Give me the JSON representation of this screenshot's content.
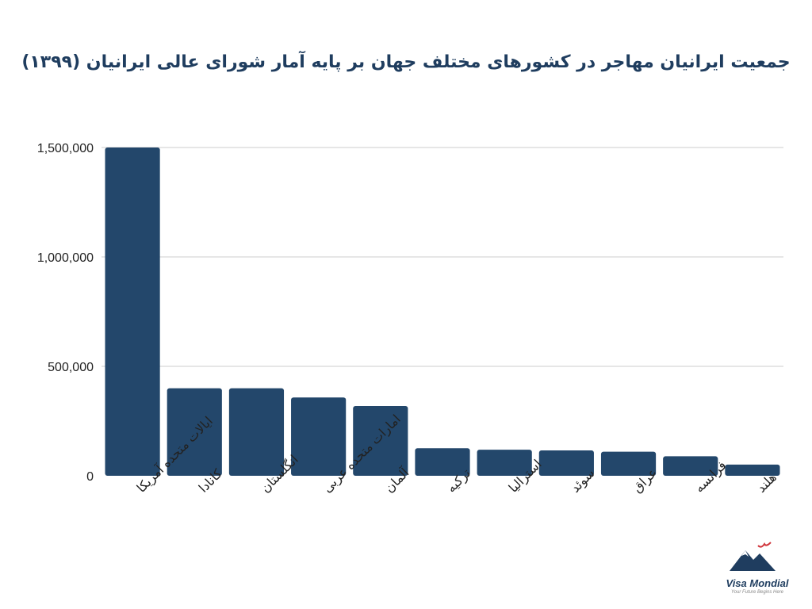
{
  "chart_data": {
    "type": "bar",
    "title": "جمعیت ایرانیان مهاجر در کشورهای مختلف جهان بر پایه آمار شورای عالی ایرانیان (۱۳۹۹)",
    "categories": [
      "ایالات متحده آمریکا",
      "کانادا",
      "انگلستان",
      "امارات متحده عربی",
      "آلمان",
      "ترکیه",
      "استرالیا",
      "سوئد",
      "عراق",
      "فرانسه",
      "هلند"
    ],
    "values": [
      1500000,
      400000,
      400000,
      358000,
      319000,
      126000,
      119000,
      116000,
      110000,
      89000,
      51000
    ],
    "ylim": [
      0,
      1500000
    ],
    "yticks": [
      0,
      500000,
      1000000,
      1500000
    ],
    "ytick_labels": [
      "0",
      "500,000",
      "1,000,000",
      "1,500,000"
    ],
    "xlabel": "",
    "ylabel": "",
    "grid": true,
    "bar_color": "#23476b"
  },
  "logo": {
    "name": "Visa Mondial",
    "tagline": "Your Future Begins Here"
  }
}
